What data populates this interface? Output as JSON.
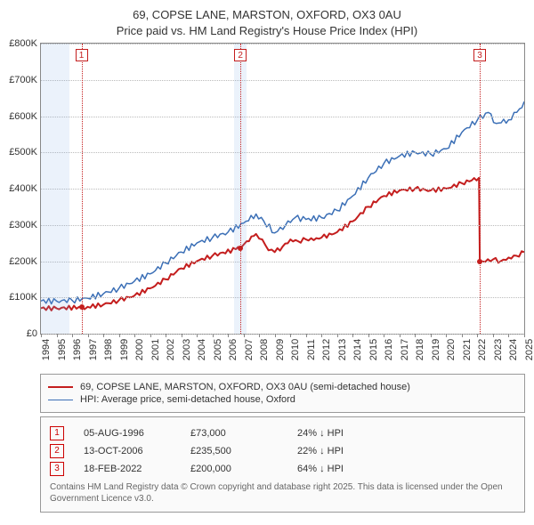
{
  "title_line1": "69, COPSE LANE, MARSTON, OXFORD, OX3 0AU",
  "title_line2": "Price paid vs. HM Land Registry's House Price Index (HPI)",
  "chart": {
    "type": "line",
    "background_color": "#ffffff",
    "grid_color": "#bbbbbb",
    "border_color": "#888888",
    "x_years": [
      1994,
      1995,
      1996,
      1997,
      1998,
      1999,
      2000,
      2001,
      2002,
      2003,
      2004,
      2005,
      2006,
      2007,
      2008,
      2009,
      2010,
      2011,
      2012,
      2013,
      2014,
      2015,
      2016,
      2017,
      2018,
      2019,
      2020,
      2021,
      2022,
      2023,
      2024,
      2025
    ],
    "x_label_fontsize": 11,
    "y_min": 0,
    "y_max": 800000,
    "y_step": 100000,
    "y_tick_labels": [
      "£0",
      "£100K",
      "£200K",
      "£300K",
      "£400K",
      "£500K",
      "£600K",
      "£700K",
      "£800K"
    ],
    "y_label_fontsize": 11,
    "uncertainty_bands": [
      {
        "year_start": 1994.0,
        "year_end": 1995.8
      },
      {
        "year_start": 2006.4,
        "year_end": 2007.2
      }
    ],
    "transaction_markers": [
      {
        "label": "1",
        "year": 1996.6,
        "price": 73000
      },
      {
        "label": "2",
        "year": 2006.8,
        "price": 235500
      },
      {
        "label": "3",
        "year": 2022.15,
        "price": 200000
      }
    ],
    "series": [
      {
        "name": "price_paid",
        "color": "#c41e1e",
        "line_width": 2,
        "points": [
          [
            1994.0,
            70000
          ],
          [
            1995.0,
            70000
          ],
          [
            1996.6,
            73000
          ],
          [
            1997.0,
            74000
          ],
          [
            1998.0,
            80000
          ],
          [
            1999.0,
            92000
          ],
          [
            2000.0,
            105000
          ],
          [
            2001.0,
            125000
          ],
          [
            2002.0,
            150000
          ],
          [
            2003.0,
            180000
          ],
          [
            2004.0,
            200000
          ],
          [
            2005.0,
            215000
          ],
          [
            2006.5,
            233000
          ],
          [
            2006.8,
            235500
          ],
          [
            2007.2,
            255000
          ],
          [
            2007.8,
            275000
          ],
          [
            2008.2,
            260000
          ],
          [
            2008.6,
            230000
          ],
          [
            2009.0,
            225000
          ],
          [
            2009.5,
            240000
          ],
          [
            2010.0,
            260000
          ],
          [
            2010.5,
            255000
          ],
          [
            2011.0,
            260000
          ],
          [
            2011.5,
            258000
          ],
          [
            2012.0,
            265000
          ],
          [
            2013.0,
            280000
          ],
          [
            2014.0,
            310000
          ],
          [
            2015.0,
            350000
          ],
          [
            2016.0,
            380000
          ],
          [
            2017.0,
            395000
          ],
          [
            2018.0,
            400000
          ],
          [
            2019.0,
            395000
          ],
          [
            2020.0,
            400000
          ],
          [
            2021.0,
            415000
          ],
          [
            2022.1,
            430000
          ],
          [
            2022.15,
            200000
          ],
          [
            2022.5,
            198000
          ],
          [
            2023.0,
            205000
          ],
          [
            2023.5,
            200000
          ],
          [
            2024.0,
            210000
          ],
          [
            2024.5,
            215000
          ],
          [
            2025.0,
            225000
          ]
        ]
      },
      {
        "name": "hpi",
        "color": "#3b6fb6",
        "line_width": 1.5,
        "points": [
          [
            1994.0,
            90000
          ],
          [
            1995.0,
            90000
          ],
          [
            1996.0,
            92000
          ],
          [
            1997.0,
            98000
          ],
          [
            1998.0,
            110000
          ],
          [
            1999.0,
            125000
          ],
          [
            2000.0,
            145000
          ],
          [
            2001.0,
            165000
          ],
          [
            2002.0,
            195000
          ],
          [
            2003.0,
            225000
          ],
          [
            2004.0,
            250000
          ],
          [
            2005.0,
            265000
          ],
          [
            2006.0,
            280000
          ],
          [
            2007.0,
            305000
          ],
          [
            2007.8,
            330000
          ],
          [
            2008.3,
            310000
          ],
          [
            2009.0,
            278000
          ],
          [
            2009.7,
            300000
          ],
          [
            2010.3,
            320000
          ],
          [
            2011.0,
            315000
          ],
          [
            2012.0,
            320000
          ],
          [
            2013.0,
            340000
          ],
          [
            2014.0,
            380000
          ],
          [
            2015.0,
            430000
          ],
          [
            2016.0,
            470000
          ],
          [
            2017.0,
            490000
          ],
          [
            2018.0,
            500000
          ],
          [
            2019.0,
            495000
          ],
          [
            2020.0,
            510000
          ],
          [
            2021.0,
            555000
          ],
          [
            2022.0,
            590000
          ],
          [
            2022.7,
            610000
          ],
          [
            2023.2,
            580000
          ],
          [
            2024.0,
            590000
          ],
          [
            2024.7,
            620000
          ],
          [
            2025.0,
            640000
          ]
        ]
      }
    ],
    "marker_box_color": "#c41e1e",
    "band_color": "rgba(120,170,230,0.15)"
  },
  "legend": {
    "items": [
      {
        "color": "#c41e1e",
        "width": 2,
        "label": "69, COPSE LANE, MARSTON, OXFORD, OX3 0AU (semi-detached house)"
      },
      {
        "color": "#3b6fb6",
        "width": 1.5,
        "label": "HPI: Average price, semi-detached house, Oxford"
      }
    ]
  },
  "transactions": {
    "rows": [
      {
        "n": "1",
        "date": "05-AUG-1996",
        "price": "£73,000",
        "delta": "24% ↓ HPI"
      },
      {
        "n": "2",
        "date": "13-OCT-2006",
        "price": "£235,500",
        "delta": "22% ↓ HPI"
      },
      {
        "n": "3",
        "date": "18-FEB-2022",
        "price": "£200,000",
        "delta": "64% ↓ HPI"
      }
    ],
    "footer": "Contains HM Land Registry data © Crown copyright and database right 2025.\nThis data is licensed under the Open Government Licence v3.0."
  }
}
